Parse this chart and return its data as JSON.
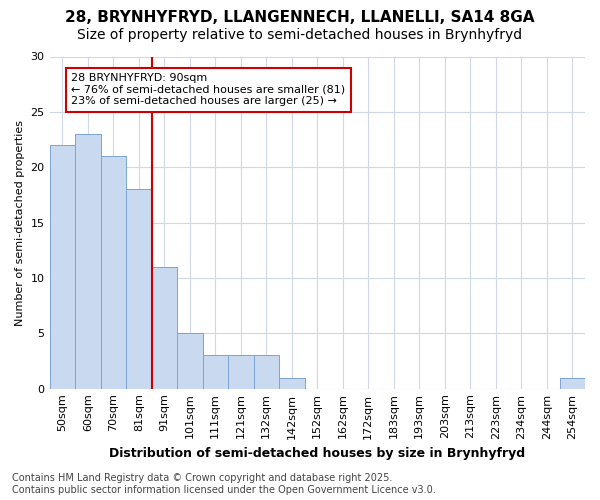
{
  "title1": "28, BRYNHYFRYD, LLANGENNECH, LLANELLI, SA14 8GA",
  "title2": "Size of property relative to semi-detached houses in Brynhyfryd",
  "xlabel": "Distribution of semi-detached houses by size in Brynhyfryd",
  "ylabel": "Number of semi-detached properties",
  "categories": [
    "50sqm",
    "60sqm",
    "70sqm",
    "81sqm",
    "91sqm",
    "101sqm",
    "111sqm",
    "121sqm",
    "132sqm",
    "142sqm",
    "152sqm",
    "162sqm",
    "172sqm",
    "183sqm",
    "193sqm",
    "203sqm",
    "213sqm",
    "223sqm",
    "234sqm",
    "244sqm",
    "254sqm"
  ],
  "values": [
    22,
    23,
    21,
    18,
    11,
    5,
    3,
    3,
    3,
    1,
    0,
    0,
    0,
    0,
    0,
    0,
    0,
    0,
    0,
    0,
    1
  ],
  "bar_color": "#c9d9ef",
  "bar_edge_color": "#7ba4d4",
  "reference_line_color": "#cc0000",
  "reference_line_idx": 4,
  "annotation_text_line1": "28 BRYNHYFRYD: 90sqm",
  "annotation_text_line2": "← 76% of semi-detached houses are smaller (81)",
  "annotation_text_line3": "23% of semi-detached houses are larger (25) →",
  "annotation_box_color": "#cc0000",
  "ylim": [
    0,
    30
  ],
  "yticks": [
    0,
    5,
    10,
    15,
    20,
    25,
    30
  ],
  "footer": "Contains HM Land Registry data © Crown copyright and database right 2025.\nContains public sector information licensed under the Open Government Licence v3.0.",
  "background_color": "#ffffff",
  "grid_color": "#d0d8e8",
  "title1_fontsize": 11,
  "title2_fontsize": 10,
  "xlabel_fontsize": 9,
  "ylabel_fontsize": 8,
  "tick_fontsize": 8,
  "annotation_fontsize": 8,
  "footer_fontsize": 7
}
